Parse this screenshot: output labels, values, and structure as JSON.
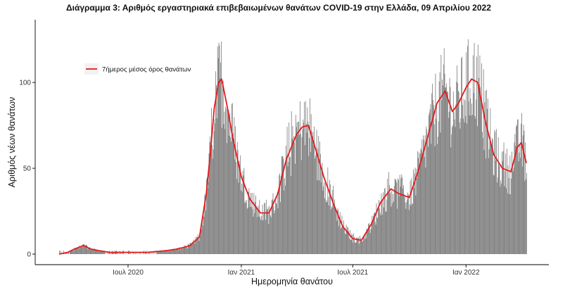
{
  "chart_data": {
    "type": "bar",
    "title": "Διάγραμμα 3: Αριθμός εργαστηριακά επιβεβαιωμένων θανάτων COVID-19 στην Ελλάδα, 09 Απριλίου 2022",
    "xlabel": "Ημερομηνία θανάτου",
    "ylabel": "Αριθμός νέων θανάτων",
    "x_range": [
      "2020-03-11",
      "2022-04-09"
    ],
    "ylim": [
      0,
      130
    ],
    "y_ticks": [
      0,
      50,
      100
    ],
    "x_ticks": [
      {
        "date": "2020-07-01",
        "label": "Ιουλ 2020"
      },
      {
        "date": "2021-01-01",
        "label": "Ιαν 2021"
      },
      {
        "date": "2021-07-01",
        "label": "Ιουλ 2021"
      },
      {
        "date": "2022-01-01",
        "label": "Ιαν 2022"
      }
    ],
    "bar_color": "#7f7f7f",
    "line_color": "#e31a1c",
    "grid": false,
    "legend_position": "top-left",
    "series": [
      {
        "name": "7ήμερος μέσος όρος θανάτων",
        "type": "line",
        "points": [
          [
            "2020-03-11",
            0
          ],
          [
            "2020-03-25",
            1
          ],
          [
            "2020-04-05",
            3
          ],
          [
            "2020-04-20",
            5
          ],
          [
            "2020-05-01",
            3
          ],
          [
            "2020-05-15",
            2
          ],
          [
            "2020-06-01",
            1
          ],
          [
            "2020-07-01",
            1
          ],
          [
            "2020-08-01",
            1
          ],
          [
            "2020-09-01",
            2
          ],
          [
            "2020-09-20",
            3
          ],
          [
            "2020-10-10",
            5
          ],
          [
            "2020-10-25",
            10
          ],
          [
            "2020-11-05",
            35
          ],
          [
            "2020-11-12",
            60
          ],
          [
            "2020-11-18",
            85
          ],
          [
            "2020-11-25",
            100
          ],
          [
            "2020-11-30",
            102
          ],
          [
            "2020-12-08",
            88
          ],
          [
            "2020-12-18",
            68
          ],
          [
            "2021-01-01",
            45
          ],
          [
            "2021-01-15",
            32
          ],
          [
            "2021-02-01",
            24
          ],
          [
            "2021-02-15",
            24
          ],
          [
            "2021-03-01",
            35
          ],
          [
            "2021-03-15",
            55
          ],
          [
            "2021-04-01",
            70
          ],
          [
            "2021-04-10",
            74
          ],
          [
            "2021-04-20",
            75
          ],
          [
            "2021-05-01",
            62
          ],
          [
            "2021-05-15",
            45
          ],
          [
            "2021-06-01",
            28
          ],
          [
            "2021-06-15",
            16
          ],
          [
            "2021-07-01",
            9
          ],
          [
            "2021-07-15",
            8
          ],
          [
            "2021-08-01",
            18
          ],
          [
            "2021-08-15",
            30
          ],
          [
            "2021-09-01",
            38
          ],
          [
            "2021-09-15",
            35
          ],
          [
            "2021-10-01",
            33
          ],
          [
            "2021-10-15",
            48
          ],
          [
            "2021-11-01",
            70
          ],
          [
            "2021-11-15",
            88
          ],
          [
            "2021-11-28",
            95
          ],
          [
            "2021-12-10",
            83
          ],
          [
            "2021-12-20",
            88
          ],
          [
            "2022-01-01",
            97
          ],
          [
            "2022-01-10",
            102
          ],
          [
            "2022-01-20",
            100
          ],
          [
            "2022-02-01",
            78
          ],
          [
            "2022-02-15",
            58
          ],
          [
            "2022-03-01",
            50
          ],
          [
            "2022-03-15",
            48
          ],
          [
            "2022-03-25",
            62
          ],
          [
            "2022-04-01",
            65
          ],
          [
            "2022-04-09",
            53
          ]
        ]
      }
    ]
  }
}
